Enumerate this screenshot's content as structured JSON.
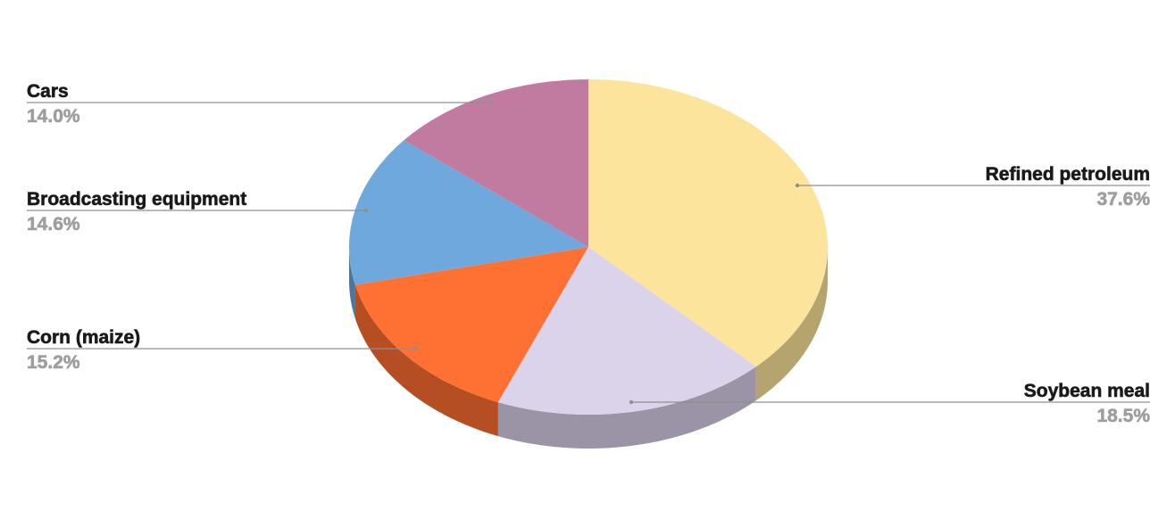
{
  "chart_data": {
    "type": "pie",
    "style": "3d",
    "start_angle": "top, clockwise",
    "slices": [
      {
        "label": "Refined petroleum",
        "value": 37.6,
        "value_label": "37.6%",
        "color": "#FDE49C",
        "side_color": "#B5A46E"
      },
      {
        "label": "Soybean meal",
        "value": 18.5,
        "value_label": "18.5%",
        "color": "#DAD3EA",
        "side_color": "#9A94A6"
      },
      {
        "label": "Corn (maize)",
        "value": 15.2,
        "value_label": "15.2%",
        "color": "#FF7033",
        "side_color": "#B54E22"
      },
      {
        "label": "Broadcasting equipment",
        "value": 14.6,
        "value_label": "14.6%",
        "color": "#6FA8DC",
        "side_color": "#4C779D"
      },
      {
        "label": "Cars",
        "value": 14.0,
        "value_label": "14.0%",
        "color": "#C27BA0",
        "side_color": "#8A5671"
      }
    ],
    "legend": "none",
    "label_color": "#1a1a1a",
    "percent_color": "#9e9e9e"
  }
}
